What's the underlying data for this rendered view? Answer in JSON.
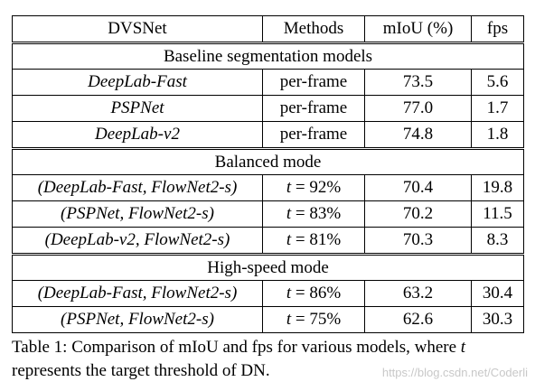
{
  "table": {
    "headers": [
      "DVSNet",
      "Methods",
      "mIoU (%)",
      "fps"
    ],
    "sections": [
      {
        "title": "Baseline segmentation models",
        "rows": [
          {
            "model": "DeepLab-Fast",
            "method": "per-frame",
            "miou": "73.5",
            "fps": "5.6"
          },
          {
            "model": "PSPNet",
            "method": "per-frame",
            "miou": "77.0",
            "fps": "1.7"
          },
          {
            "model": "DeepLab-v2",
            "method": "per-frame",
            "miou": "74.8",
            "fps": "1.8"
          }
        ]
      },
      {
        "title": "Balanced mode",
        "rows": [
          {
            "model": "(DeepLab-Fast, FlowNet2-s)",
            "method_var": "t",
            "method_rest": " = 92%",
            "miou": "70.4",
            "fps": "19.8"
          },
          {
            "model": "(PSPNet, FlowNet2-s)",
            "method_var": "t",
            "method_rest": " = 83%",
            "miou": "70.2",
            "fps": "11.5"
          },
          {
            "model": "(DeepLab-v2, FlowNet2-s)",
            "method_var": "t",
            "method_rest": " = 81%",
            "miou": "70.3",
            "fps": "8.3"
          }
        ]
      },
      {
        "title": "High-speed mode",
        "rows": [
          {
            "model": "(DeepLab-Fast, FlowNet2-s)",
            "method_var": "t",
            "method_rest": " = 86%",
            "miou": "63.2",
            "fps": "30.4"
          },
          {
            "model": "(PSPNet, FlowNet2-s)",
            "method_var": "t",
            "method_rest": " = 75%",
            "miou": "62.6",
            "fps": "30.3"
          }
        ]
      }
    ]
  },
  "caption": {
    "prefix": "Table 1: Comparison of mIoU and fps for various models, where ",
    "var": "t",
    "suffix": " represents the target threshold of DN."
  },
  "watermark": "https://blog.csdn.net/Coderli"
}
